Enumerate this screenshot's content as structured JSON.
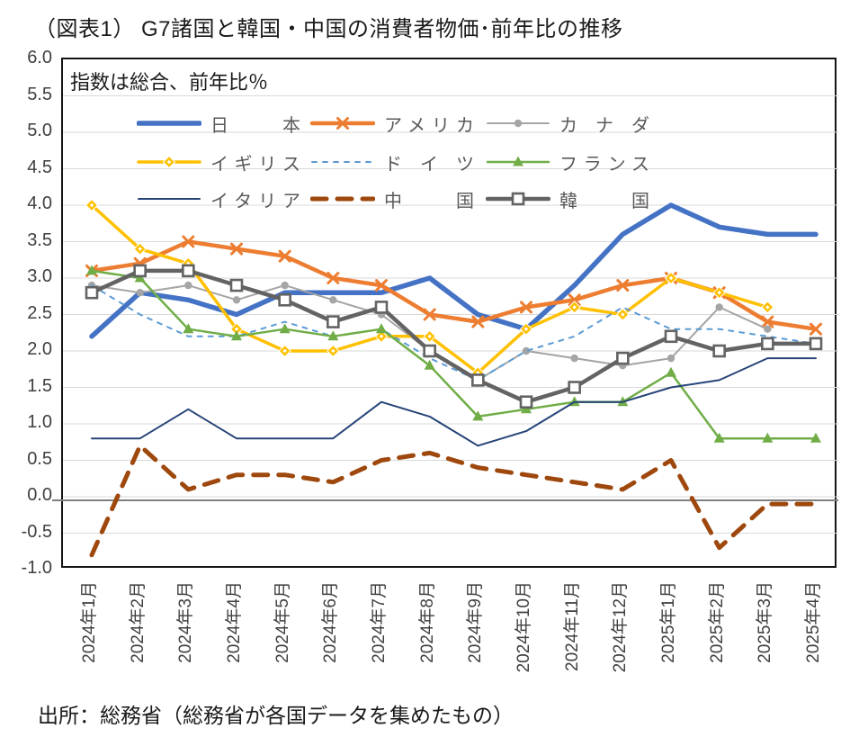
{
  "page": {
    "title": "（図表1） G7諸国と韓国・中国の消費者物価･前年比の推移",
    "subtitle": "指数は総合、前年比％",
    "source": "出所：総務省（総務省が各国データを集めたもの）"
  },
  "chart_data": {
    "type": "line",
    "title": "（図表1） G7諸国と韓国・中国の消費者物価･前年比の推移",
    "subtitle": "指数は総合、前年比％",
    "source": "出所：総務省（総務省が各国データを集めたもの）",
    "x_categories": [
      "2024年1月",
      "2024年2月",
      "2024年3月",
      "2024年4月",
      "2024年5月",
      "2024年6月",
      "2024年7月",
      "2024年8月",
      "2024年9月",
      "2024年10月",
      "2024年11月",
      "2024年12月",
      "2025年1月",
      "2025年2月",
      "2025年3月",
      "2025年4月"
    ],
    "ylim": [
      -1.0,
      6.0
    ],
    "ytick_step": 0.5,
    "grid": true,
    "legend_position": "top-inside",
    "gridline_color": "#d9d9d9",
    "zero_axis_color": "#808080",
    "series": [
      {
        "key": "japan",
        "name": "日本",
        "color": "#4472C4",
        "width": 5.5,
        "dash": null,
        "marker": "none",
        "values": [
          2.2,
          2.8,
          2.7,
          2.5,
          2.8,
          2.8,
          2.8,
          3.0,
          2.5,
          2.3,
          2.9,
          3.6,
          4.0,
          3.7,
          3.6,
          3.6
        ]
      },
      {
        "key": "usa",
        "name": "アメリカ",
        "color": "#ED7D31",
        "width": 4.5,
        "dash": null,
        "marker": "x",
        "values": [
          3.1,
          3.2,
          3.5,
          3.4,
          3.3,
          3.0,
          2.9,
          2.5,
          2.4,
          2.6,
          2.7,
          2.9,
          3.0,
          2.8,
          2.4,
          2.3
        ]
      },
      {
        "key": "canada",
        "name": "カナダ",
        "color": "#A5A5A5",
        "width": 2,
        "dash": null,
        "marker": "circle",
        "values": [
          2.9,
          2.8,
          2.9,
          2.7,
          2.9,
          2.7,
          2.5,
          2.0,
          1.6,
          2.0,
          1.9,
          1.8,
          1.9,
          2.6,
          2.3,
          null
        ]
      },
      {
        "key": "uk",
        "name": "イギリス",
        "color": "#FFC000",
        "width": 3.5,
        "dash": null,
        "marker": "diamond",
        "values": [
          4.0,
          3.4,
          3.2,
          2.3,
          2.0,
          2.0,
          2.2,
          2.2,
          1.7,
          2.3,
          2.6,
          2.5,
          3.0,
          2.8,
          2.6,
          null
        ]
      },
      {
        "key": "germany",
        "name": "ドイツ",
        "color": "#5B9BD5",
        "width": 2,
        "dash": "5 7",
        "marker": "none",
        "values": [
          2.9,
          2.5,
          2.2,
          2.2,
          2.4,
          2.2,
          2.3,
          1.9,
          1.6,
          2.0,
          2.2,
          2.6,
          2.3,
          2.3,
          2.2,
          2.1
        ]
      },
      {
        "key": "france",
        "name": "フランス",
        "color": "#70AD47",
        "width": 2.5,
        "dash": null,
        "marker": "triangle",
        "values": [
          3.1,
          3.0,
          2.3,
          2.2,
          2.3,
          2.2,
          2.3,
          1.8,
          1.1,
          1.2,
          1.3,
          1.3,
          1.7,
          0.8,
          0.8,
          0.8
        ]
      },
      {
        "key": "italy",
        "name": "イタリア",
        "color": "#264478",
        "width": 2,
        "dash": null,
        "marker": "none",
        "values": [
          0.8,
          0.8,
          1.2,
          0.8,
          0.8,
          0.8,
          1.3,
          1.1,
          0.7,
          0.9,
          1.3,
          1.3,
          1.5,
          1.6,
          1.9,
          1.9
        ]
      },
      {
        "key": "china",
        "name": "中国",
        "color": "#9E480E",
        "width": 5,
        "dash": "16 12",
        "marker": "none",
        "values": [
          -0.8,
          0.7,
          0.1,
          0.3,
          0.3,
          0.2,
          0.5,
          0.6,
          0.4,
          0.3,
          0.2,
          0.1,
          0.5,
          -0.7,
          -0.1,
          -0.1
        ]
      },
      {
        "key": "korea",
        "name": "韓国",
        "color": "#636363",
        "width": 4.5,
        "dash": null,
        "marker": "square",
        "values": [
          2.8,
          3.1,
          3.1,
          2.9,
          2.7,
          2.4,
          2.6,
          2.0,
          1.6,
          1.3,
          1.5,
          1.9,
          2.2,
          2.0,
          2.1,
          2.1
        ]
      }
    ]
  }
}
